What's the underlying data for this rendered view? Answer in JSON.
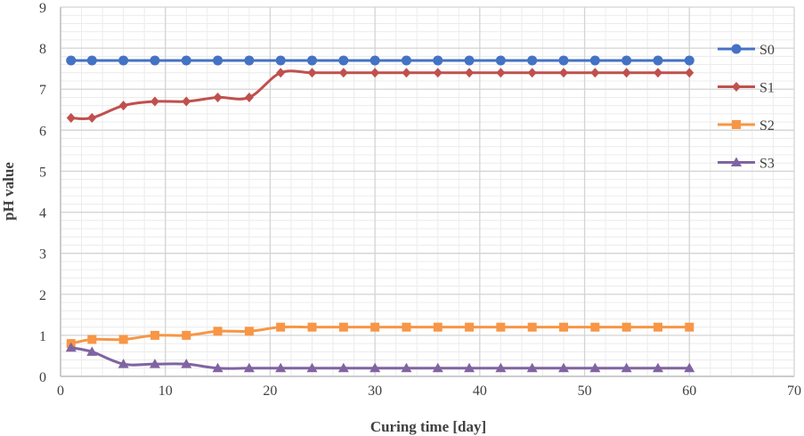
{
  "chart_data": {
    "type": "line",
    "title": "",
    "xlabel": "Curing time [day]",
    "ylabel": "pH value",
    "xlim": [
      0,
      70
    ],
    "ylim": [
      0,
      9
    ],
    "xticks": [
      0,
      10,
      20,
      30,
      40,
      50,
      60,
      70
    ],
    "yticks": [
      0,
      1,
      2,
      3,
      4,
      5,
      6,
      7,
      8,
      9
    ],
    "grid": {
      "major": true,
      "minor": true
    },
    "legend_position": "right",
    "smooth": true,
    "x": [
      1,
      3,
      6,
      9,
      12,
      15,
      18,
      21,
      24,
      27,
      30,
      33,
      36,
      39,
      42,
      45,
      48,
      51,
      54,
      57,
      60
    ],
    "series": [
      {
        "name": "S0",
        "color": "#4472C4",
        "marker": "circle",
        "values": [
          7.7,
          7.7,
          7.7,
          7.7,
          7.7,
          7.7,
          7.7,
          7.7,
          7.7,
          7.7,
          7.7,
          7.7,
          7.7,
          7.7,
          7.7,
          7.7,
          7.7,
          7.7,
          7.7,
          7.7,
          7.7
        ]
      },
      {
        "name": "S1",
        "color": "#C0504D",
        "marker": "diamond",
        "values": [
          6.3,
          6.3,
          6.6,
          6.7,
          6.7,
          6.8,
          6.8,
          7.4,
          7.4,
          7.4,
          7.4,
          7.4,
          7.4,
          7.4,
          7.4,
          7.4,
          7.4,
          7.4,
          7.4,
          7.4,
          7.4
        ]
      },
      {
        "name": "S2",
        "color": "#F79646",
        "marker": "square",
        "values": [
          0.8,
          0.9,
          0.9,
          1.0,
          1.0,
          1.1,
          1.1,
          1.2,
          1.2,
          1.2,
          1.2,
          1.2,
          1.2,
          1.2,
          1.2,
          1.2,
          1.2,
          1.2,
          1.2,
          1.2,
          1.2
        ]
      },
      {
        "name": "S3",
        "color": "#8064A2",
        "marker": "triangle",
        "values": [
          0.7,
          0.6,
          0.3,
          0.3,
          0.3,
          0.2,
          0.2,
          0.2,
          0.2,
          0.2,
          0.2,
          0.2,
          0.2,
          0.2,
          0.2,
          0.2,
          0.2,
          0.2,
          0.2,
          0.2,
          0.2
        ]
      }
    ]
  }
}
